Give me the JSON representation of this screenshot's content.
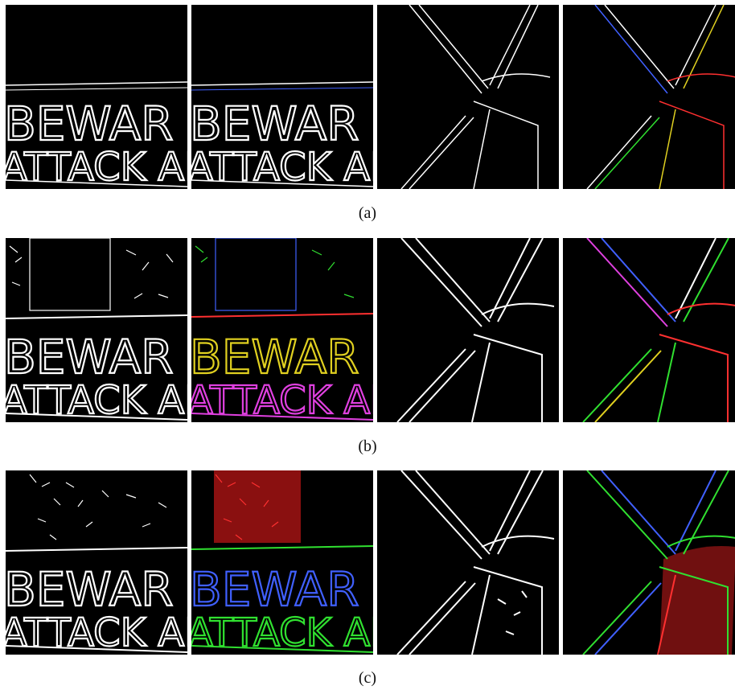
{
  "figure": {
    "rows": [
      {
        "caption": "(a)",
        "sign_text_1": "BEWAR",
        "sign_text_2": "ATTACK AL",
        "panels": [
          "sign-gray-edges",
          "sign-color-edges",
          "windmill-gray-edges",
          "windmill-color-edges"
        ]
      },
      {
        "caption": "(b)",
        "sign_text_1": "BEWAR",
        "sign_text_2": "ATTACK AL",
        "panels": [
          "sign-gray-edges",
          "sign-color-edges",
          "windmill-gray-edges",
          "windmill-color-edges"
        ]
      },
      {
        "caption": "(c)",
        "sign_text_1": "BEWAR",
        "sign_text_2": "ATTACK AL",
        "panels": [
          "sign-gray-edges",
          "sign-color-edges",
          "windmill-gray-edges",
          "windmill-color-edges"
        ]
      }
    ],
    "colors": {
      "background": "#000000",
      "white_edge": "#ffffff",
      "red_edge": "#ff3030",
      "green_edge": "#30e030",
      "blue_edge": "#4060ff",
      "magenta_edge": "#e040e0",
      "yellow_edge": "#e0d020"
    }
  }
}
